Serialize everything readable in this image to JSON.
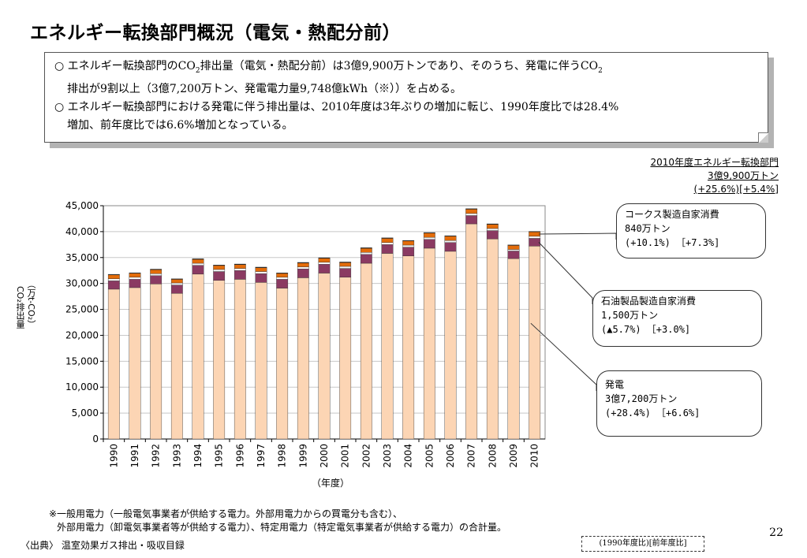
{
  "page": {
    "title": "エネルギー転換部門概況（電気・熱配分前）",
    "page_number": "22"
  },
  "summary": {
    "line1_a": "○ エネルギー転換部門のCO",
    "line1_b": "排出量（電気・熱配分前）は3億9,900万トンであり、そのうち、発電に伴うCO",
    "line1_sub": "2",
    "line2": "排出が9割以上（3億7,200万トン、発電電力量9,748億kWh（※））を占める。",
    "line3": "○ エネルギー転換部門における発電に伴う排出量は、2010年度は3年ぶりの増加に転じ、1990年度比では28.4%",
    "line4": "増加、前年度比では6.6%増加となっている。"
  },
  "total_box": {
    "line1": "2010年度エネルギー転換部門",
    "line2": "3億9,900万トン",
    "line3": "(+25.6%)[+5.4%]"
  },
  "callouts": [
    {
      "line1": "コークス製造自家消費",
      "line2": "840万トン",
      "line3": "(+10.1%)  ［+7.3%]"
    },
    {
      "line1": "石油製品製造自家消費",
      "line2": "1,500万トン",
      "line3": "(▲5.7%)  ［+3.0%]"
    },
    {
      "line1": "発電",
      "line2": "3億7,200万トン",
      "line3": "(+28.4%)  ［+6.6%]"
    }
  ],
  "axis": {
    "ylabel_1": "CO₂排出量",
    "ylabel_2": "（万t-CO₂）",
    "xlabel": "（年度）"
  },
  "notes": {
    "n1": "※一般用電力（一般電気事業者が供給する電力。外部用電力からの買電分も含む）、",
    "n2": "外部用電力（卸電気事業者等が供給する電力）、特定用電力（特定電気事業者が供給する電力）の合計量。",
    "source": "〈出典〉 温室効果ガス排出・吸収目録",
    "legend": "(1990年度比)[前年度比]"
  },
  "chart_data": {
    "type": "bar",
    "stacked": true,
    "categories": [
      "1990",
      "1991",
      "1992",
      "1993",
      "1994",
      "1995",
      "1996",
      "1997",
      "1998",
      "1999",
      "2000",
      "2001",
      "2002",
      "2003",
      "2004",
      "2005",
      "2006",
      "2007",
      "2008",
      "2009",
      "2010"
    ],
    "ylim": [
      0,
      45000
    ],
    "yticks": [
      0,
      5000,
      10000,
      15000,
      20000,
      25000,
      30000,
      35000,
      40000,
      45000
    ],
    "ytick_labels": [
      "0",
      "5,000",
      "10,000",
      "15,000",
      "20,000",
      "25,000",
      "30,000",
      "35,000",
      "40,000",
      "45,000"
    ],
    "series": [
      {
        "values": [
          28900,
          29200,
          29900,
          28100,
          31800,
          30600,
          30800,
          30200,
          29100,
          31100,
          32000,
          31200,
          33900,
          35800,
          35300,
          36800,
          36200,
          41500,
          38600,
          34800,
          37200
        ],
        "color": "#FCD5B4"
      },
      {
        "values": [
          1600,
          1600,
          1600,
          1600,
          1700,
          1700,
          1700,
          1700,
          1700,
          1700,
          1700,
          1700,
          1700,
          1700,
          1700,
          1700,
          1700,
          1600,
          1600,
          1460,
          1500
        ],
        "color": "#8B3A62"
      },
      {
        "values": [
          400,
          400,
          400,
          400,
          400,
          400,
          400,
          400,
          400,
          400,
          400,
          400,
          400,
          400,
          400,
          400,
          400,
          400,
          400,
          300,
          400
        ],
        "color": "#F5F5F5"
      },
      {
        "values": [
          760,
          760,
          760,
          700,
          760,
          760,
          750,
          750,
          740,
          760,
          760,
          740,
          790,
          800,
          800,
          820,
          810,
          830,
          800,
          780,
          840
        ],
        "color": "#E36C0A"
      },
      {
        "values": [
          100,
          100,
          100,
          100,
          100,
          100,
          100,
          100,
          100,
          100,
          100,
          100,
          100,
          100,
          100,
          100,
          100,
          100,
          100,
          100,
          100
        ],
        "color": "#000000"
      }
    ]
  }
}
